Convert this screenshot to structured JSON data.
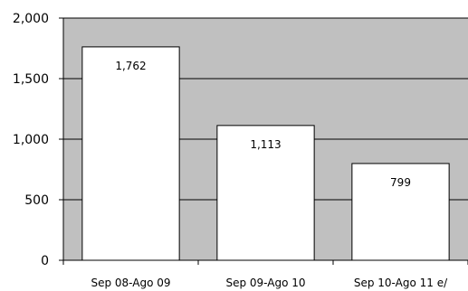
{
  "chart_data": {
    "type": "bar",
    "categories": [
      "Sep 08-Ago 09",
      "Sep 09-Ago 10",
      "Sep 10-Ago 11 e/"
    ],
    "values": [
      1762,
      1113,
      799
    ],
    "data_labels": [
      "1,762",
      "1,113",
      "799"
    ],
    "yticks": [
      0,
      500,
      1000,
      1500,
      2000
    ],
    "ytick_labels": [
      "0",
      "500",
      "1,000",
      "1,500",
      "2,000"
    ],
    "ylim": [
      0,
      2000
    ],
    "grid": true,
    "colors": {
      "plot_background": "#c0c0c0",
      "bar_fill": "#ffffff",
      "bar_stroke": "#000000",
      "gridline": "#000000"
    }
  }
}
